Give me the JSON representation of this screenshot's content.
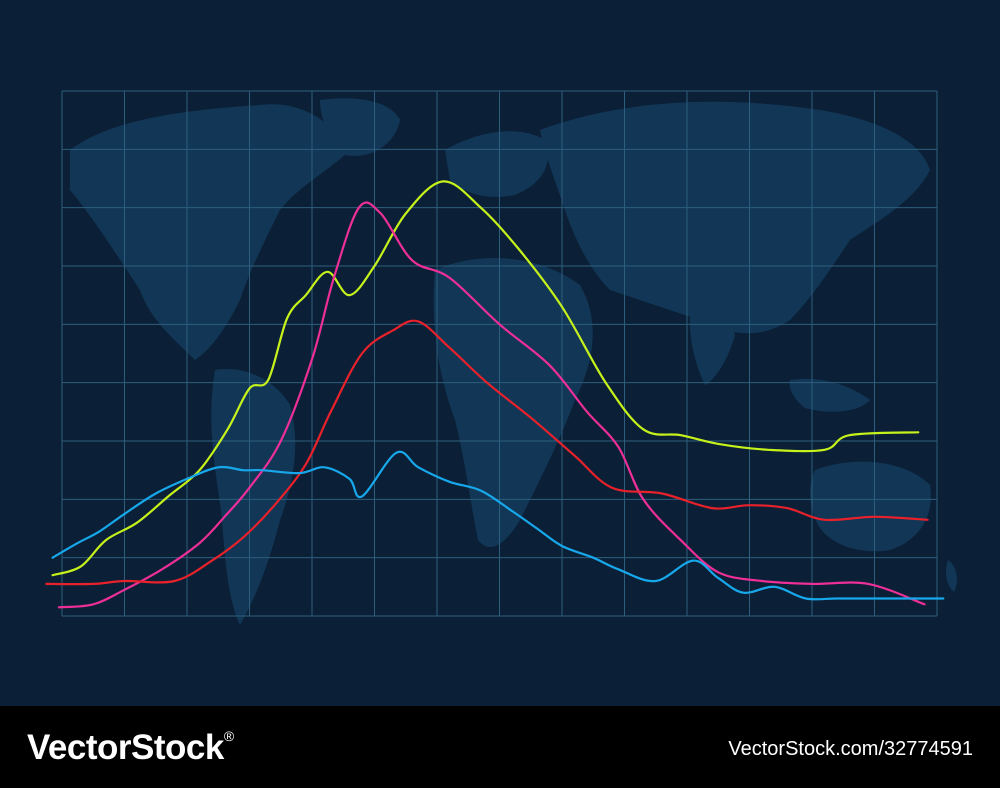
{
  "chart_data": {
    "type": "line",
    "title": "",
    "xlabel": "",
    "ylabel": "",
    "xlim": [
      0,
      14
    ],
    "ylim": [
      0,
      9
    ],
    "grid": true,
    "legend": "none",
    "background_decoration": "world-map",
    "series": [
      {
        "color": "#c6f21b",
        "points": [
          [
            -0.15,
            0.7
          ],
          [
            0.3,
            0.85
          ],
          [
            0.7,
            1.3
          ],
          [
            1.2,
            1.6
          ],
          [
            1.7,
            2.05
          ],
          [
            2.2,
            2.5
          ],
          [
            2.65,
            3.2
          ],
          [
            3.0,
            3.9
          ],
          [
            3.3,
            4.05
          ],
          [
            3.6,
            5.1
          ],
          [
            3.9,
            5.5
          ],
          [
            4.25,
            5.9
          ],
          [
            4.6,
            5.5
          ],
          [
            5.0,
            6.0
          ],
          [
            5.5,
            6.9
          ],
          [
            6.1,
            7.45
          ],
          [
            6.7,
            7.0
          ],
          [
            7.3,
            6.3
          ],
          [
            8.0,
            5.3
          ],
          [
            8.7,
            4.0
          ],
          [
            9.3,
            3.2
          ],
          [
            9.9,
            3.1
          ],
          [
            10.5,
            2.95
          ],
          [
            11.3,
            2.85
          ],
          [
            12.2,
            2.85
          ],
          [
            12.6,
            3.1
          ],
          [
            13.7,
            3.15
          ]
        ]
      },
      {
        "color": "#ed2f97",
        "points": [
          [
            -0.05,
            0.15
          ],
          [
            0.5,
            0.2
          ],
          [
            1.0,
            0.45
          ],
          [
            1.6,
            0.8
          ],
          [
            2.2,
            1.25
          ],
          [
            2.6,
            1.7
          ],
          [
            3.0,
            2.2
          ],
          [
            3.5,
            3.0
          ],
          [
            4.0,
            4.4
          ],
          [
            4.35,
            5.8
          ],
          [
            4.75,
            7.0
          ],
          [
            5.1,
            6.9
          ],
          [
            5.6,
            6.1
          ],
          [
            6.2,
            5.8
          ],
          [
            7.0,
            5.0
          ],
          [
            7.8,
            4.3
          ],
          [
            8.4,
            3.5
          ],
          [
            8.9,
            2.9
          ],
          [
            9.3,
            2.0
          ],
          [
            9.9,
            1.3
          ],
          [
            10.5,
            0.75
          ],
          [
            11.2,
            0.6
          ],
          [
            12.0,
            0.55
          ],
          [
            12.9,
            0.55
          ],
          [
            13.8,
            0.2
          ]
        ]
      },
      {
        "color": "#e8212b",
        "points": [
          [
            -0.25,
            0.55
          ],
          [
            0.5,
            0.55
          ],
          [
            1.0,
            0.6
          ],
          [
            1.8,
            0.6
          ],
          [
            2.4,
            0.95
          ],
          [
            2.9,
            1.35
          ],
          [
            3.4,
            1.9
          ],
          [
            3.9,
            2.6
          ],
          [
            4.3,
            3.5
          ],
          [
            4.8,
            4.5
          ],
          [
            5.3,
            4.9
          ],
          [
            5.7,
            5.05
          ],
          [
            6.2,
            4.6
          ],
          [
            6.8,
            4.0
          ],
          [
            7.5,
            3.4
          ],
          [
            8.2,
            2.75
          ],
          [
            8.8,
            2.2
          ],
          [
            9.6,
            2.1
          ],
          [
            10.4,
            1.85
          ],
          [
            11.0,
            1.9
          ],
          [
            11.6,
            1.85
          ],
          [
            12.2,
            1.65
          ],
          [
            13.0,
            1.7
          ],
          [
            13.85,
            1.65
          ]
        ]
      },
      {
        "color": "#17a8ec",
        "points": [
          [
            -0.15,
            1.0
          ],
          [
            0.25,
            1.25
          ],
          [
            0.6,
            1.45
          ],
          [
            1.0,
            1.75
          ],
          [
            1.5,
            2.1
          ],
          [
            2.0,
            2.35
          ],
          [
            2.5,
            2.55
          ],
          [
            2.9,
            2.5
          ],
          [
            3.2,
            2.5
          ],
          [
            3.8,
            2.45
          ],
          [
            4.2,
            2.55
          ],
          [
            4.6,
            2.35
          ],
          [
            4.8,
            2.05
          ],
          [
            5.35,
            2.8
          ],
          [
            5.7,
            2.55
          ],
          [
            6.2,
            2.3
          ],
          [
            6.7,
            2.15
          ],
          [
            7.2,
            1.8
          ],
          [
            7.6,
            1.5
          ],
          [
            8.0,
            1.2
          ],
          [
            8.5,
            1.0
          ],
          [
            8.9,
            0.8
          ],
          [
            9.5,
            0.6
          ],
          [
            10.1,
            0.95
          ],
          [
            10.5,
            0.65
          ],
          [
            10.9,
            0.4
          ],
          [
            11.4,
            0.5
          ],
          [
            11.9,
            0.3
          ],
          [
            12.4,
            0.3
          ],
          [
            13.0,
            0.3
          ],
          [
            14.1,
            0.3
          ]
        ]
      }
    ]
  },
  "footer": {
    "brand": "VectorStock",
    "brand_mark": "®",
    "image_id": "VectorStock.com/32774591"
  },
  "colors": {
    "background": "#0b2036",
    "grid": "#2d5e7e",
    "map": "#123656",
    "footer_bg": "#000000",
    "footer_text": "#ffffff"
  }
}
